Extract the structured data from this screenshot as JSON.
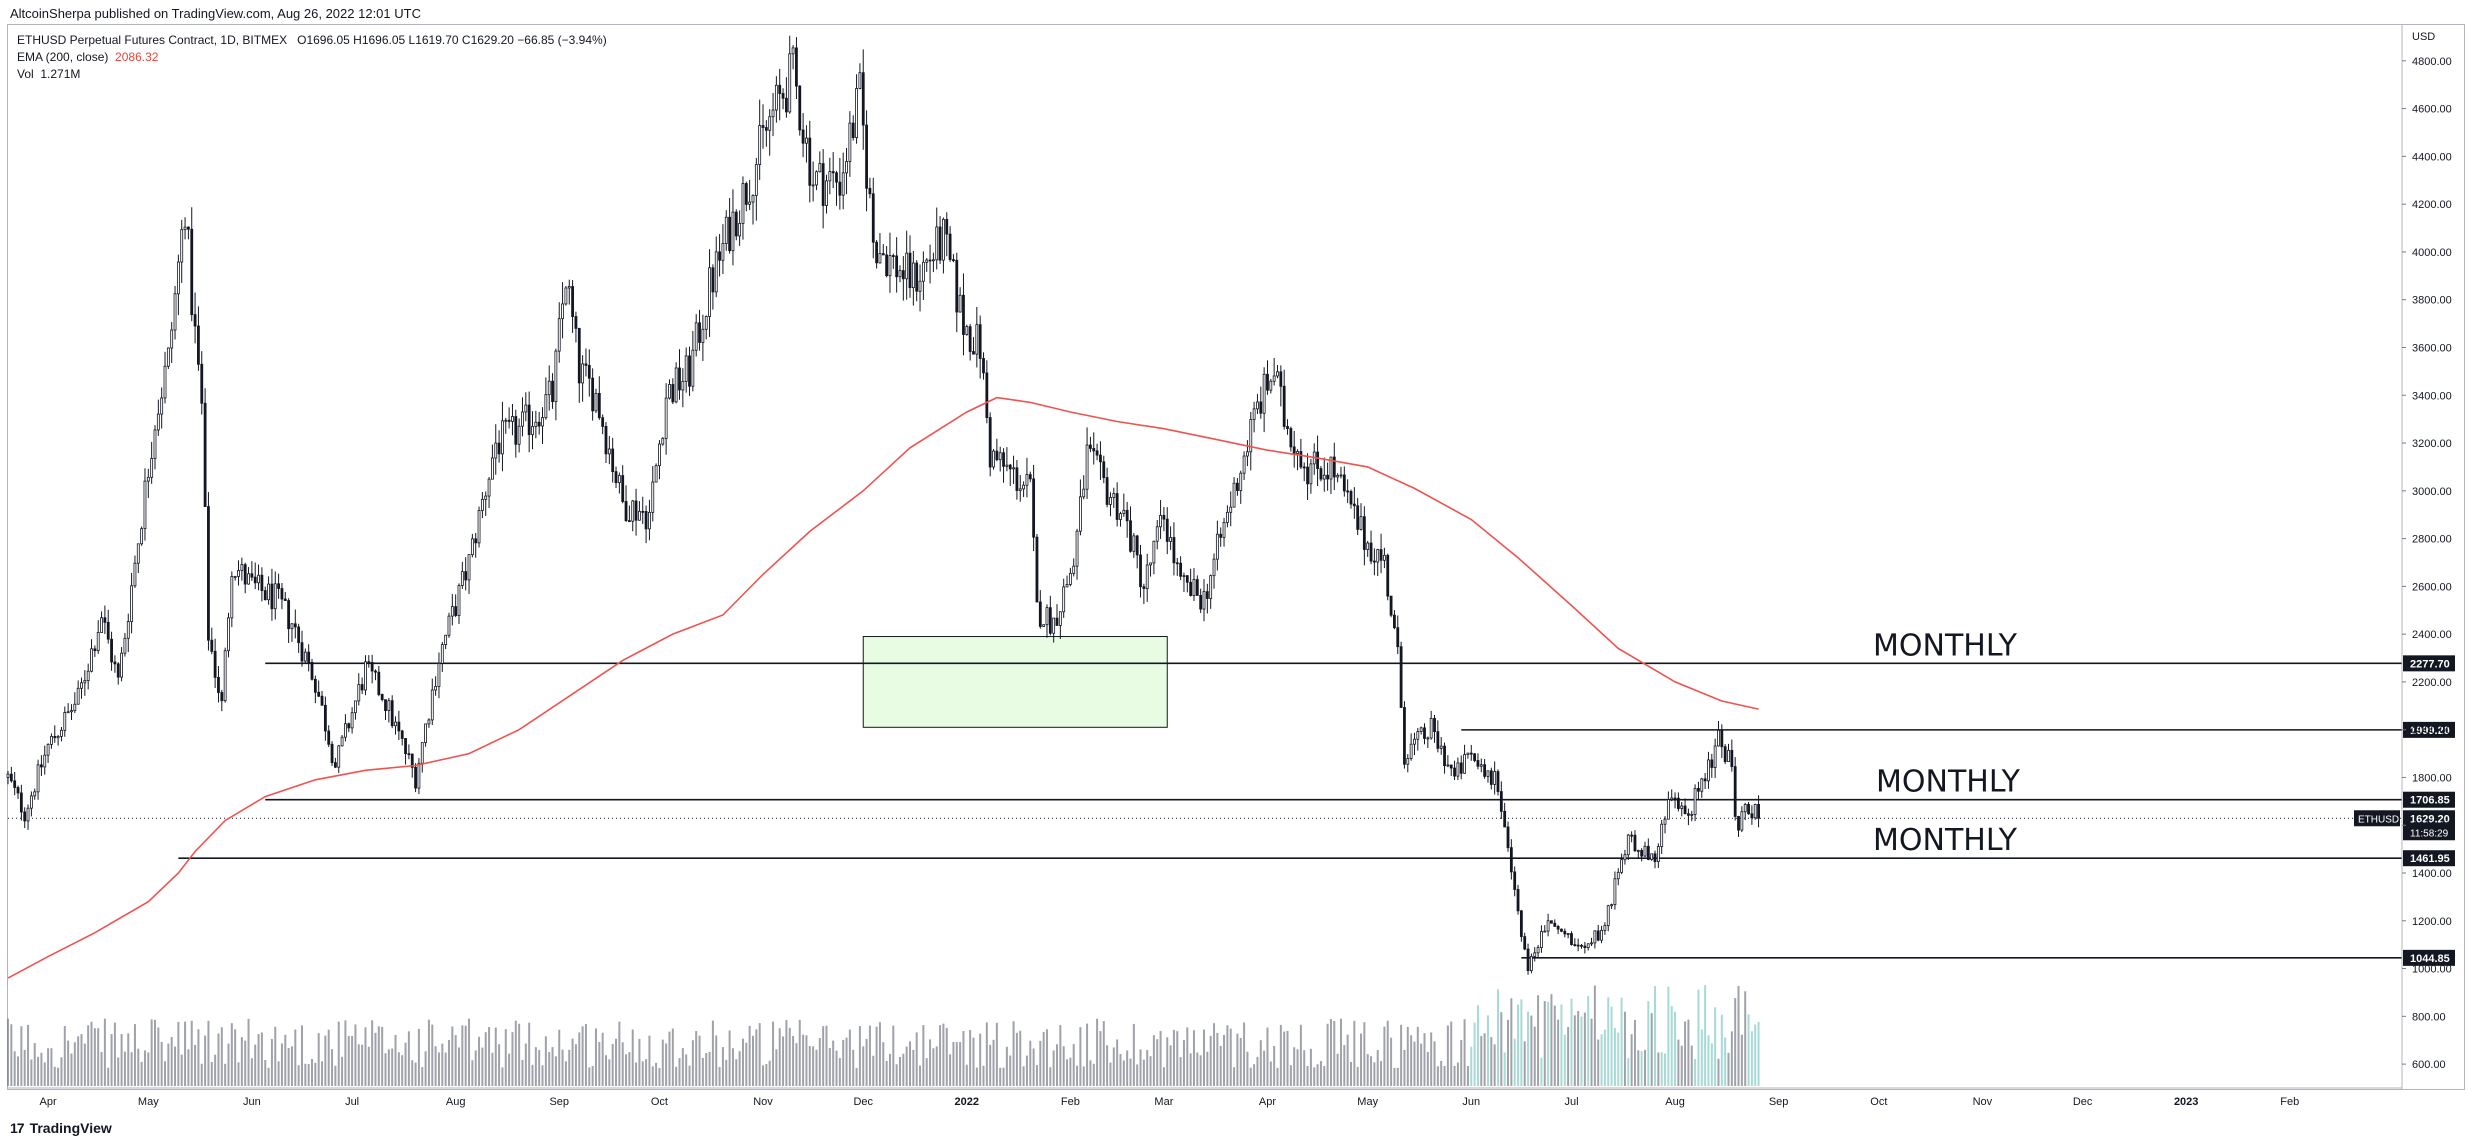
{
  "header": {
    "published_by": "AltcoinSherpa published on TradingView.com, Aug 26, 2022 12:01 UTC"
  },
  "legend": {
    "symbol_line": "ETHUSD Perpetual Futures Contract, 1D, BITMEX",
    "ohlc": "O1696.05  H1696.05  L1619.70  C1629.20  −66.85 (−3.94%)",
    "ema_label": "EMA (200, close)",
    "ema_value": "2086.32",
    "vol_label": "Vol",
    "vol_value": "1.271M"
  },
  "footer": {
    "logo_glyph": "17",
    "brand": "TradingView"
  },
  "colors": {
    "candle": "#131722",
    "ema": "#ef5350",
    "volume": "#787b86",
    "volume_recent": "#80cbc4",
    "zone_fill": "#e8fbe3",
    "zone_border": "#131722",
    "grid": "#f0f3fa"
  },
  "chart_data": {
    "type": "candlestick",
    "symbol": "ETHUSD",
    "currency_label": "USD",
    "y_axis_ticks": [
      600,
      800,
      1000,
      1200,
      1400,
      1600,
      1800,
      2000,
      2200,
      2400,
      2600,
      2800,
      3000,
      3200,
      3400,
      3600,
      3800,
      4000,
      4200,
      4400,
      4600,
      4800
    ],
    "y_axis_tick_labels": [
      "600.00",
      "800.00",
      "1000.00",
      "1200.00",
      "1400.00",
      "1600.00",
      "1800.00",
      "2000.00",
      "2200.00",
      "2400.00",
      "2600.00",
      "2800.00",
      "3000.00",
      "3200.00",
      "3400.00",
      "3600.00",
      "3800.00",
      "4000.00",
      "4200.00",
      "4400.00",
      "4600.00",
      "4800.00"
    ],
    "x_axis_labels": [
      "Apr",
      "May",
      "Jun",
      "Jul",
      "Aug",
      "Sep",
      "Oct",
      "Nov",
      "Dec",
      "2022",
      "Feb",
      "Mar",
      "Apr",
      "May",
      "Jun",
      "Jul",
      "Aug",
      "Sep",
      "Oct",
      "Nov",
      "Dec",
      "2023",
      "Feb"
    ],
    "x_axis_dates": [
      "2021-04-01",
      "2021-05-01",
      "2021-06-01",
      "2021-07-01",
      "2021-08-01",
      "2021-09-01",
      "2021-10-01",
      "2021-11-01",
      "2021-12-01",
      "2022-01-01",
      "2022-02-01",
      "2022-03-01",
      "2022-04-01",
      "2022-05-01",
      "2022-06-01",
      "2022-07-01",
      "2022-08-01",
      "2022-09-01",
      "2022-10-01",
      "2022-11-01",
      "2022-12-01",
      "2023-01-01",
      "2023-02-01"
    ],
    "x_range": [
      "2021-03-20",
      "2023-03-06"
    ],
    "y_range": [
      500,
      4950
    ],
    "last_price": {
      "value": 1629.2,
      "label": "1629.20",
      "symbol_tag": "ETHUSD",
      "countdown": "11:58:29"
    },
    "levels": [
      {
        "value": 2277.7,
        "label": "2277.70",
        "start": "2021-06-05",
        "end": "2023-03-06",
        "annotation": "MONTHLY"
      },
      {
        "value": 1999.2,
        "label": "1999.20",
        "start": "2022-05-29",
        "end": "2023-03-06",
        "annotation": ""
      },
      {
        "value": 1706.85,
        "label": "1706.85",
        "start": "2021-06-05",
        "end": "2023-03-06",
        "annotation": "MONTHLY"
      },
      {
        "value": 1461.95,
        "label": "1461.95",
        "start": "2021-05-10",
        "end": "2023-03-06",
        "annotation": "MONTHLY"
      },
      {
        "value": 1044.85,
        "label": "1044.85",
        "start": "2022-06-16",
        "end": "2023-03-06",
        "annotation": ""
      }
    ],
    "zone": {
      "x_start": "2021-12-01",
      "x_end": "2022-03-02",
      "y_low": 2010,
      "y_high": 2390
    },
    "price_path": [
      [
        "2021-03-20",
        1800
      ],
      [
        "2021-03-25",
        1650
      ],
      [
        "2021-04-01",
        1930
      ],
      [
        "2021-04-10",
        2130
      ],
      [
        "2021-04-17",
        2480
      ],
      [
        "2021-04-22",
        2200
      ],
      [
        "2021-05-03",
        3300
      ],
      [
        "2021-05-07",
        3550
      ],
      [
        "2021-05-12",
        4200
      ],
      [
        "2021-05-14",
        3800
      ],
      [
        "2021-05-17",
        3350
      ],
      [
        "2021-05-19",
        2400
      ],
      [
        "2021-05-23",
        2100
      ],
      [
        "2021-05-26",
        2700
      ],
      [
        "2021-06-01",
        2600
      ],
      [
        "2021-06-08",
        2550
      ],
      [
        "2021-06-13",
        2450
      ],
      [
        "2021-06-20",
        2200
      ],
      [
        "2021-06-26",
        1850
      ],
      [
        "2021-07-05",
        2250
      ],
      [
        "2021-07-10",
        2150
      ],
      [
        "2021-07-20",
        1800
      ],
      [
        "2021-07-27",
        2300
      ],
      [
        "2021-08-05",
        2700
      ],
      [
        "2021-08-13",
        3200
      ],
      [
        "2021-08-20",
        3250
      ],
      [
        "2021-08-30",
        3400
      ],
      [
        "2021-09-03",
        3900
      ],
      [
        "2021-09-07",
        3500
      ],
      [
        "2021-09-12",
        3400
      ],
      [
        "2021-09-20",
        2950
      ],
      [
        "2021-09-28",
        2900
      ],
      [
        "2021-10-03",
        3400
      ],
      [
        "2021-10-10",
        3500
      ],
      [
        "2021-10-16",
        3850
      ],
      [
        "2021-10-22",
        4100
      ],
      [
        "2021-10-28",
        4300
      ],
      [
        "2021-11-03",
        4550
      ],
      [
        "2021-11-10",
        4750
      ],
      [
        "2021-11-16",
        4300
      ],
      [
        "2021-11-24",
        4300
      ],
      [
        "2021-11-30",
        4650
      ],
      [
        "2021-12-04",
        4050
      ],
      [
        "2021-12-10",
        3950
      ],
      [
        "2021-12-16",
        3880
      ],
      [
        "2021-12-25",
        4050
      ],
      [
        "2021-12-31",
        3700
      ],
      [
        "2022-01-05",
        3600
      ],
      [
        "2022-01-08",
        3150
      ],
      [
        "2022-01-20",
        3000
      ],
      [
        "2022-01-22",
        2500
      ],
      [
        "2022-01-27",
        2450
      ],
      [
        "2022-02-02",
        2700
      ],
      [
        "2022-02-06",
        3150
      ],
      [
        "2022-02-12",
        3000
      ],
      [
        "2022-02-17",
        2900
      ],
      [
        "2022-02-23",
        2600
      ],
      [
        "2022-03-01",
        2900
      ],
      [
        "2022-03-06",
        2600
      ],
      [
        "2022-03-13",
        2550
      ],
      [
        "2022-03-20",
        2900
      ],
      [
        "2022-03-29",
        3350
      ],
      [
        "2022-04-03",
        3500
      ],
      [
        "2022-04-06",
        3300
      ],
      [
        "2022-04-13",
        3100
      ],
      [
        "2022-04-20",
        3100
      ],
      [
        "2022-04-30",
        2800
      ],
      [
        "2022-05-06",
        2700
      ],
      [
        "2022-05-10",
        2300
      ],
      [
        "2022-05-12",
        1900
      ],
      [
        "2022-05-20",
        2000
      ],
      [
        "2022-05-27",
        1800
      ],
      [
        "2022-06-01",
        1900
      ],
      [
        "2022-06-08",
        1800
      ],
      [
        "2022-06-13",
        1400
      ],
      [
        "2022-06-18",
        1000
      ],
      [
        "2022-06-24",
        1200
      ],
      [
        "2022-07-03",
        1100
      ],
      [
        "2022-07-10",
        1150
      ],
      [
        "2022-07-18",
        1550
      ],
      [
        "2022-07-26",
        1450
      ],
      [
        "2022-07-30",
        1700
      ],
      [
        "2022-08-05",
        1650
      ],
      [
        "2022-08-14",
        1950
      ],
      [
        "2022-08-18",
        1850
      ],
      [
        "2022-08-19",
        1600
      ],
      [
        "2022-08-23",
        1680
      ],
      [
        "2022-08-26",
        1629.2
      ]
    ],
    "ema_path": [
      [
        "2021-03-20",
        960
      ],
      [
        "2021-04-01",
        1050
      ],
      [
        "2021-04-15",
        1150
      ],
      [
        "2021-05-01",
        1280
      ],
      [
        "2021-05-10",
        1400
      ],
      [
        "2021-05-15",
        1490
      ],
      [
        "2021-05-24",
        1620
      ],
      [
        "2021-06-05",
        1720
      ],
      [
        "2021-06-20",
        1790
      ],
      [
        "2021-07-05",
        1830
      ],
      [
        "2021-07-20",
        1850
      ],
      [
        "2021-08-05",
        1900
      ],
      [
        "2021-08-20",
        2000
      ],
      [
        "2021-09-05",
        2150
      ],
      [
        "2021-09-20",
        2290
      ],
      [
        "2021-10-05",
        2400
      ],
      [
        "2021-10-20",
        2480
      ],
      [
        "2021-11-01",
        2650
      ],
      [
        "2021-11-15",
        2830
      ],
      [
        "2021-12-01",
        3000
      ],
      [
        "2021-12-15",
        3180
      ],
      [
        "2022-01-01",
        3330
      ],
      [
        "2022-01-10",
        3390
      ],
      [
        "2022-01-20",
        3370
      ],
      [
        "2022-02-01",
        3330
      ],
      [
        "2022-02-15",
        3290
      ],
      [
        "2022-03-01",
        3260
      ],
      [
        "2022-03-15",
        3220
      ],
      [
        "2022-04-01",
        3170
      ],
      [
        "2022-04-15",
        3140
      ],
      [
        "2022-05-01",
        3100
      ],
      [
        "2022-05-15",
        3010
      ],
      [
        "2022-06-01",
        2880
      ],
      [
        "2022-06-15",
        2720
      ],
      [
        "2022-07-01",
        2520
      ],
      [
        "2022-07-15",
        2340
      ],
      [
        "2022-08-01",
        2200
      ],
      [
        "2022-08-15",
        2120
      ],
      [
        "2022-08-26",
        2086.32
      ]
    ]
  }
}
